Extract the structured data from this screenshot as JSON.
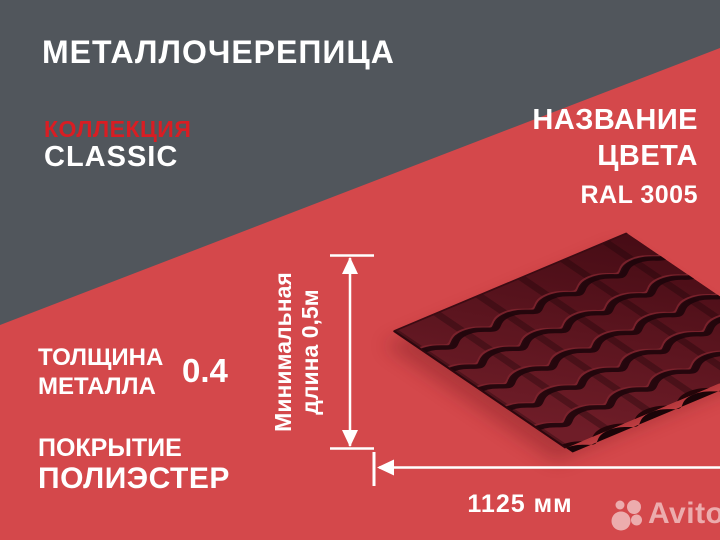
{
  "header": {
    "title": "МЕТАЛЛОЧЕРЕПИЦА"
  },
  "collection": {
    "label": "КОЛЛЕКЦИЯ",
    "name": "CLASSIC"
  },
  "color": {
    "label_line1": "НАЗВАНИЕ",
    "label_line2": "ЦВЕТА",
    "ral_code": "RAL 3005"
  },
  "specs": {
    "thickness_label_line1": "ТОЛЩИНА",
    "thickness_label_line2": "МЕТАЛЛА",
    "thickness_value": "0.4",
    "coating_label": "ПОКРЫТИЕ",
    "coating_value": "ПОЛИЭСТЕР"
  },
  "dimensions": {
    "min_length_line1": "Минимальная",
    "min_length_line2": "длина 0,5м",
    "sheet_width": "1125 мм"
  },
  "watermark": {
    "brand": "Avito"
  },
  "colors": {
    "dark_gray": "#51565c",
    "background_red": "#d4484b",
    "accent_red": "#d91d23",
    "roof_base_red": "#6f1d28",
    "roof_far_red": "#470c15",
    "roof_shadow": "#1d040a",
    "roof_highlight": "#7c232e",
    "dimension_white": "#ffffff"
  }
}
